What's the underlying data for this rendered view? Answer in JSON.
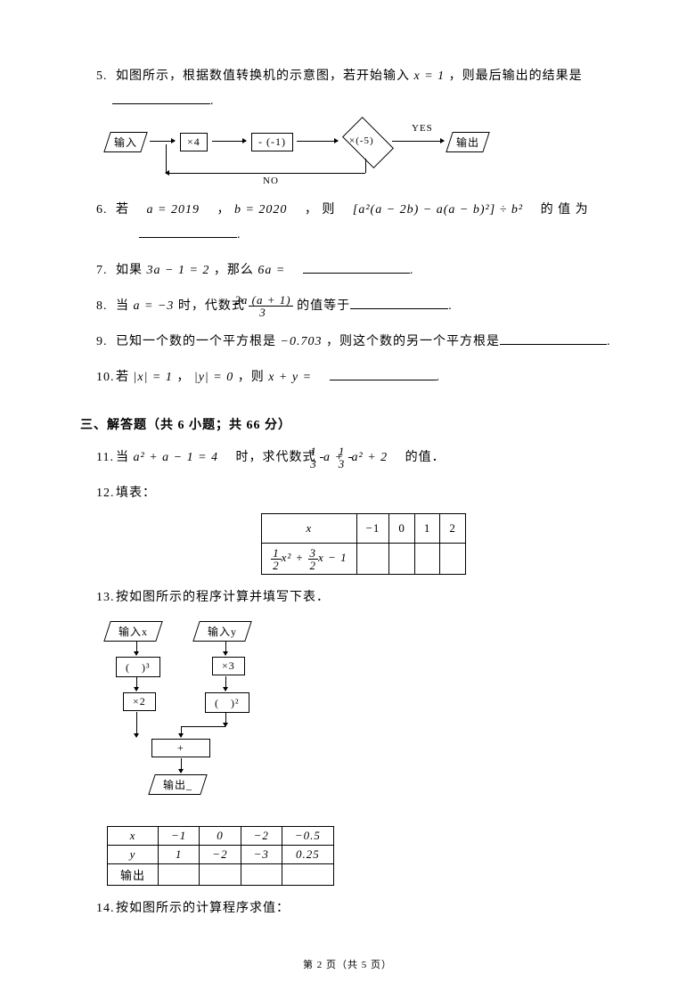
{
  "q5": {
    "n": "5.",
    "text": "如图所示，根据数值转换机的示意图，若开始输入",
    "var": "x = 1",
    "after": "，则最后输出的结果是",
    "blank_w": 110
  },
  "flow1": {
    "input": "输入",
    "b1": "×4",
    "b2": "- (-1)",
    "d": "×(-5)",
    "yes": "YES",
    "no": "NO",
    "output": "输出"
  },
  "q6": {
    "n": "6.",
    "t1": "若 ",
    "a": "a = 2019",
    "t2": " ， ",
    "b": "b = 2020",
    "t3": " ， 则 ",
    "expr": "[a²(a − 2b) − a(a − b)²] ÷ b²",
    "t4": " 的 值 为",
    "blank_w": 110
  },
  "q7": {
    "n": "7.",
    "t1": "如果 ",
    "e1": "3a − 1 = 2",
    "t2": " ，那么 ",
    "e2": "6a = ",
    "blank_w": 120
  },
  "q8": {
    "n": "8.",
    "t1": "当 ",
    "a": "a = −3",
    "t2": " 时，代数式 ",
    "frac_t": "2a (a + 1)",
    "frac_b": "3",
    "t3": " 的值等于",
    "blank_w": 110
  },
  "q9": {
    "n": "9.",
    "t1": "已知一个数的一个平方根是 ",
    "v": "−0.703",
    "t2": " ，则这个数的另一个平方根是",
    "blank_w": 120
  },
  "q10": {
    "n": "10.",
    "t1": "若 ",
    "e1": "|x| = 1",
    "t2": " ， ",
    "e2": "|y| = 0",
    "t3": " ，则 ",
    "e3": "x + y = ",
    "blank_w": 120
  },
  "section": "三、解答题（共 6 小题；共 66 分）",
  "q11": {
    "n": "11.",
    "t1": "当 ",
    "e1": "a² + a − 1 = 4",
    "t2": " 时，求代数式 ",
    "f1t": "1",
    "f1b": "3",
    "m1": "a + ",
    "f2t": "1",
    "f2b": "3",
    "m2": "a² + 2",
    "t3": " 的值．"
  },
  "q12": {
    "n": "12.",
    "t": "填表：",
    "header": [
      "x",
      "−1",
      "0",
      "1",
      "2"
    ],
    "expr_f1t": "1",
    "expr_f1b": "2",
    "expr_m1": "x² + ",
    "expr_f2t": "3",
    "expr_f2b": "2",
    "expr_m2": "x − 1"
  },
  "q13": {
    "n": "13.",
    "t": "按如图所示的程序计算并填写下表．",
    "inx": "输入x",
    "iny": "输入y",
    "b1": "(　)³",
    "b2": "×3",
    "b3": "×2",
    "b4": "(　)²",
    "plus": "+",
    "out": "输出_",
    "table": {
      "r1": [
        "x",
        "−1",
        "0",
        "−2",
        "−0.5"
      ],
      "r2": [
        "y",
        "1",
        "−2",
        "−3",
        "0.25"
      ],
      "r3": [
        "输出",
        "",
        "",
        "",
        ""
      ]
    }
  },
  "q14": {
    "n": "14.",
    "t": "按如图所示的计算程序求值："
  },
  "footer": "第 2 页（共 5 页）"
}
